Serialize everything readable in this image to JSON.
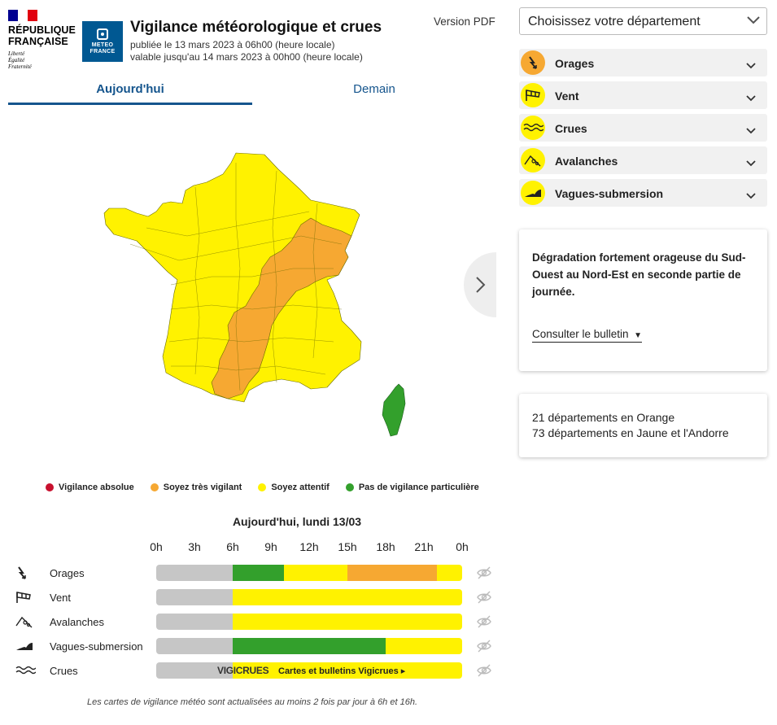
{
  "header": {
    "republic_line1": "RÉPUBLIQUE",
    "republic_line2": "FRANÇAISE",
    "motto1": "Liberté",
    "motto2": "Égalité",
    "motto3": "Fraternité",
    "mf_logo_line1": "METEO",
    "mf_logo_line2": "FRANCE",
    "title": "Vigilance météorologique et crues",
    "published": "publiée le 13 mars 2023 à 06h00 (heure locale)",
    "valid_until": "valable jusqu'au 14 mars 2023 à 00h00 (heure locale)",
    "pdf_label": "Version PDF"
  },
  "tabs": [
    {
      "label": "Aujourd'hui",
      "active": true
    },
    {
      "label": "Demain",
      "active": false
    }
  ],
  "legend": [
    {
      "label": "Vigilance absolue",
      "color": "#c8102e"
    },
    {
      "label": "Soyez très vigilant",
      "color": "#f6a832"
    },
    {
      "label": "Soyez attentif",
      "color": "#fff200"
    },
    {
      "label": "Pas de vigilance particulière",
      "color": "#33a02c"
    }
  ],
  "timeline": {
    "title": "Aujourd'hui, lundi 13/03",
    "hours": [
      "0h",
      "3h",
      "6h",
      "9h",
      "12h",
      "15h",
      "18h",
      "21h",
      "0h"
    ],
    "rows": [
      {
        "label": "Orages",
        "icon": "lightning-icon",
        "segments": [
          {
            "from": 0,
            "to": 6,
            "level": "none"
          },
          {
            "from": 6,
            "to": 10,
            "level": "green"
          },
          {
            "from": 10,
            "to": 15,
            "level": "yellow"
          },
          {
            "from": 15,
            "to": 22,
            "level": "orange"
          },
          {
            "from": 22,
            "to": 24,
            "level": "yellow"
          }
        ]
      },
      {
        "label": "Vent",
        "icon": "windsock-icon",
        "segments": [
          {
            "from": 0,
            "to": 6,
            "level": "none"
          },
          {
            "from": 6,
            "to": 24,
            "level": "yellow"
          }
        ]
      },
      {
        "label": "Avalanches",
        "icon": "avalanche-icon",
        "segments": [
          {
            "from": 0,
            "to": 6,
            "level": "none"
          },
          {
            "from": 6,
            "to": 24,
            "level": "yellow"
          }
        ]
      },
      {
        "label": "Vagues-submersion",
        "icon": "waves-icon",
        "segments": [
          {
            "from": 0,
            "to": 6,
            "level": "none"
          },
          {
            "from": 6,
            "to": 18,
            "level": "green"
          },
          {
            "from": 18,
            "to": 24,
            "level": "yellow"
          }
        ]
      },
      {
        "label": "Crues",
        "icon": "flood-icon",
        "segments": [
          {
            "from": 0,
            "to": 6,
            "level": "none"
          },
          {
            "from": 6,
            "to": 24,
            "level": "yellow"
          }
        ]
      }
    ],
    "vigicrues_logo": "VIGICRUES",
    "vigicrues_link": "Cartes et bulletins Vigicrues ▸"
  },
  "level_colors": {
    "none": "#c6c6c6",
    "green": "#33a02c",
    "yellow": "#fff200",
    "orange": "#f6a832"
  },
  "footnote": "Les cartes de vigilance météo sont actualisées au moins 2 fois par jour à 6h et 16h.",
  "department_select": {
    "placeholder": "Choisissez votre département"
  },
  "hazards": [
    {
      "label": "Orages",
      "icon": "lightning-icon",
      "level": "orange"
    },
    {
      "label": "Vent",
      "icon": "windsock-icon",
      "level": "yellow"
    },
    {
      "label": "Crues",
      "icon": "flood-icon",
      "level": "yellow"
    },
    {
      "label": "Avalanches",
      "icon": "avalanche-icon",
      "level": "yellow"
    },
    {
      "label": "Vagues-submersion",
      "icon": "waves-icon",
      "level": "yellow"
    }
  ],
  "bulletin": {
    "text": "Dégradation fortement orageuse du Sud-Ouest au Nord-Est en seconde partie de journée.",
    "link": "Consulter le bulletin"
  },
  "counts": {
    "orange": "21 départements en Orange",
    "yellow": "73 départements en Jaune et l'Andorre"
  }
}
